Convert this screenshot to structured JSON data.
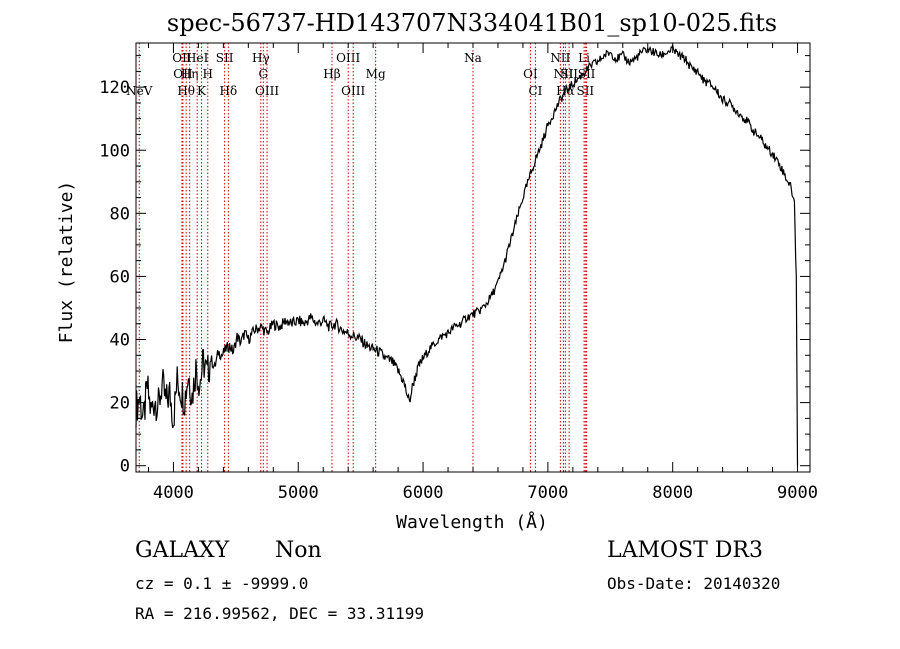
{
  "chart_data": {
    "type": "line",
    "title": "spec-56737-HD143707N334041B01_sp10-025.fits",
    "xlabel": "Wavelength (Å)",
    "ylabel": "Flux (relative)",
    "xlim": [
      3700,
      9100
    ],
    "ylim": [
      -2,
      134
    ],
    "x_ticks": [
      4000,
      5000,
      6000,
      7000,
      8000,
      9000
    ],
    "y_ticks": [
      0,
      20,
      40,
      60,
      80,
      100,
      120
    ],
    "grid": false,
    "line_color": "#000000",
    "marker_color": "#cc0000",
    "spectrum": [
      [
        3700,
        18
      ],
      [
        3730,
        22
      ],
      [
        3760,
        14
      ],
      [
        3790,
        25
      ],
      [
        3820,
        17
      ],
      [
        3850,
        21
      ],
      [
        3880,
        19
      ],
      [
        3910,
        26
      ],
      [
        3940,
        20
      ],
      [
        3970,
        23
      ],
      [
        4000,
        15
      ],
      [
        4030,
        27
      ],
      [
        4060,
        24
      ],
      [
        4090,
        21
      ],
      [
        4120,
        29
      ],
      [
        4150,
        22
      ],
      [
        4180,
        31
      ],
      [
        4210,
        26
      ],
      [
        4240,
        33
      ],
      [
        4270,
        29
      ],
      [
        4300,
        34
      ],
      [
        4330,
        31
      ],
      [
        4360,
        36
      ],
      [
        4390,
        35
      ],
      [
        4420,
        37
      ],
      [
        4450,
        38
      ],
      [
        4480,
        36
      ],
      [
        4510,
        41
      ],
      [
        4540,
        39
      ],
      [
        4570,
        42
      ],
      [
        4600,
        40
      ],
      [
        4650,
        43
      ],
      [
        4700,
        44
      ],
      [
        4750,
        42
      ],
      [
        4800,
        45
      ],
      [
        4850,
        44
      ],
      [
        4900,
        46
      ],
      [
        4950,
        45
      ],
      [
        5000,
        46
      ],
      [
        5050,
        45
      ],
      [
        5100,
        47
      ],
      [
        5150,
        45
      ],
      [
        5200,
        46
      ],
      [
        5250,
        44
      ],
      [
        5300,
        45
      ],
      [
        5350,
        43
      ],
      [
        5400,
        42
      ],
      [
        5450,
        41
      ],
      [
        5500,
        40
      ],
      [
        5550,
        38
      ],
      [
        5600,
        37
      ],
      [
        5650,
        36
      ],
      [
        5700,
        34
      ],
      [
        5750,
        33
      ],
      [
        5800,
        30
      ],
      [
        5840,
        27
      ],
      [
        5870,
        23
      ],
      [
        5890,
        20
      ],
      [
        5920,
        26
      ],
      [
        5960,
        31
      ],
      [
        6000,
        34
      ],
      [
        6050,
        37
      ],
      [
        6100,
        39
      ],
      [
        6150,
        41
      ],
      [
        6200,
        42
      ],
      [
        6250,
        44
      ],
      [
        6300,
        45
      ],
      [
        6350,
        47
      ],
      [
        6400,
        48
      ],
      [
        6450,
        49
      ],
      [
        6500,
        51
      ],
      [
        6550,
        54
      ],
      [
        6600,
        58
      ],
      [
        6650,
        64
      ],
      [
        6700,
        71
      ],
      [
        6750,
        78
      ],
      [
        6800,
        85
      ],
      [
        6850,
        91
      ],
      [
        6900,
        97
      ],
      [
        6950,
        102
      ],
      [
        7000,
        108
      ],
      [
        7050,
        112
      ],
      [
        7100,
        116
      ],
      [
        7150,
        119
      ],
      [
        7200,
        121
      ],
      [
        7250,
        123
      ],
      [
        7300,
        125
      ],
      [
        7350,
        127
      ],
      [
        7400,
        128
      ],
      [
        7450,
        130
      ],
      [
        7500,
        131
      ],
      [
        7550,
        129
      ],
      [
        7600,
        130
      ],
      [
        7650,
        128
      ],
      [
        7700,
        129
      ],
      [
        7750,
        131
      ],
      [
        7800,
        132
      ],
      [
        7850,
        131
      ],
      [
        7900,
        130
      ],
      [
        7950,
        131
      ],
      [
        8000,
        132
      ],
      [
        8050,
        130
      ],
      [
        8100,
        129
      ],
      [
        8150,
        126
      ],
      [
        8200,
        125
      ],
      [
        8250,
        122
      ],
      [
        8300,
        121
      ],
      [
        8350,
        119
      ],
      [
        8400,
        116
      ],
      [
        8450,
        115
      ],
      [
        8500,
        113
      ],
      [
        8550,
        111
      ],
      [
        8600,
        109
      ],
      [
        8650,
        106
      ],
      [
        8700,
        104
      ],
      [
        8750,
        101
      ],
      [
        8800,
        99
      ],
      [
        8850,
        96
      ],
      [
        8900,
        92
      ],
      [
        8950,
        88
      ],
      [
        8975,
        83
      ],
      [
        8990,
        60
      ],
      [
        9000,
        0
      ]
    ],
    "lines": [
      {
        "name": "NeV",
        "wavelength": 3726,
        "row": 3
      },
      {
        "name": "OII",
        "wavelength": 4068,
        "row": 1
      },
      {
        "name": "OII",
        "wavelength": 4076,
        "row": 2
      },
      {
        "name": "Hθ",
        "wavelength": 4102,
        "row": 3
      },
      {
        "name": "Hη",
        "wavelength": 4130,
        "row": 2
      },
      {
        "name": "HeI",
        "wavelength": 4190,
        "row": 1
      },
      {
        "name": "K",
        "wavelength": 4225,
        "row": 3
      },
      {
        "name": "H",
        "wavelength": 4275,
        "row": 2
      },
      {
        "name": "SII",
        "wavelength": 4410,
        "row": 1
      },
      {
        "name": "Hδ",
        "wavelength": 4440,
        "row": 3
      },
      {
        "name": "Hγ",
        "wavelength": 4700,
        "row": 1
      },
      {
        "name": "G",
        "wavelength": 4720,
        "row": 2
      },
      {
        "name": "OIII",
        "wavelength": 4750,
        "row": 3
      },
      {
        "name": "Hβ",
        "wavelength": 5270,
        "row": 2
      },
      {
        "name": "OIII",
        "wavelength": 5400,
        "row": 1
      },
      {
        "name": "OIII",
        "wavelength": 5440,
        "row": 3
      },
      {
        "name": "Mg",
        "wavelength": 5620,
        "row": 2
      },
      {
        "name": "Na",
        "wavelength": 6400,
        "row": 1
      },
      {
        "name": "OI",
        "wavelength": 6860,
        "row": 2
      },
      {
        "name": "CI",
        "wavelength": 6900,
        "row": 3
      },
      {
        "name": "NII",
        "wavelength": 7100,
        "row": 1
      },
      {
        "name": "NII",
        "wavelength": 7125,
        "row": 2
      },
      {
        "name": "Hα",
        "wavelength": 7140,
        "row": 3
      },
      {
        "name": "SII",
        "wavelength": 7170,
        "row": 2
      },
      {
        "name": "Li",
        "wavelength": 7290,
        "row": 1
      },
      {
        "name": "SII",
        "wavelength": 7300,
        "row": 3
      },
      {
        "name": "SII",
        "wavelength": 7310,
        "row": 2
      }
    ]
  },
  "info": {
    "class": "GALAXY",
    "subclass": "Non",
    "survey": "LAMOST DR3",
    "redshift": "cz = 0.1 ± -9999.0",
    "obs_date": "Obs-Date: 20140320",
    "coords": "RA = 216.99562, DEC =  33.31199"
  }
}
